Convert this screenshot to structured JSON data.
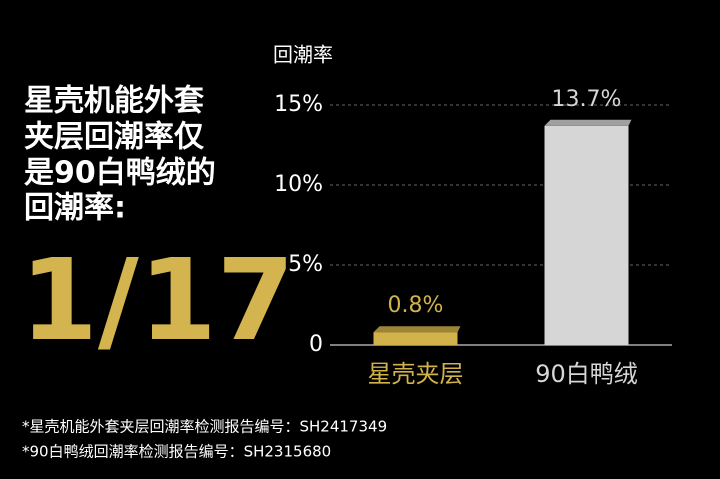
{
  "headline": [
    "星壳机能外套",
    "夹层回潮率仅",
    "是90白鸭绒的",
    "回潮率:"
  ],
  "ratio": "1/17",
  "footnotes": [
    "*星壳机能外套夹层回潮率检测报告编号：SH2417349",
    "*90白鸭绒回潮率检测报告编号：SH2315680"
  ],
  "chart_data": {
    "type": "bar",
    "y_label": "回潮率",
    "categories": [
      "星壳夹层",
      "90白鸭绒"
    ],
    "values": [
      0.8,
      13.7
    ],
    "value_labels": [
      "0.8%",
      "13.7%"
    ],
    "colors": [
      "#d2b24a",
      "#d6d6d6"
    ],
    "ylim": [
      0,
      15
    ],
    "yticks": [
      0,
      {
        "value": 5,
        "label": "5%"
      },
      {
        "value": 10,
        "label": "10%"
      },
      {
        "value": 15,
        "label": "15%"
      }
    ],
    "grid": true
  }
}
